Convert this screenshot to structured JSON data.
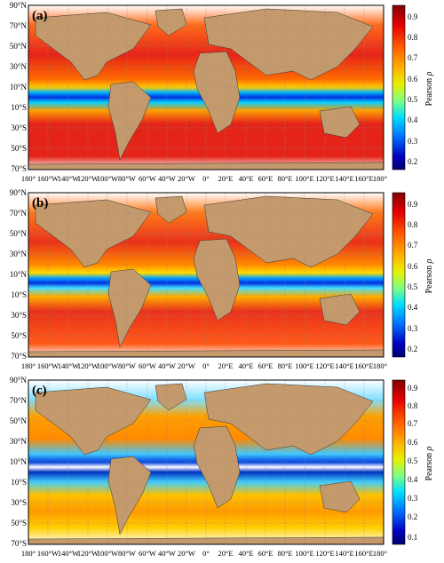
{
  "figure": {
    "panels": [
      {
        "label": "(a)"
      },
      {
        "label": "(b)"
      },
      {
        "label": "(c)"
      }
    ],
    "lat_ticks": [
      "90°N",
      "70°N",
      "50°N",
      "30°N",
      "10°N",
      "10°S",
      "30°S",
      "50°S",
      "70°S"
    ],
    "lon_ticks": [
      "180°",
      "160°W",
      "140°W",
      "120°W",
      "100°W",
      "80°W",
      "60°W",
      "40°W",
      "20°W",
      "0°",
      "20°E",
      "40°E",
      "60°E",
      "80°E",
      "100°E",
      "120°E",
      "140°E",
      "160°E",
      "180°"
    ],
    "colorbar": {
      "label": "Pearson ",
      "label_symbol": "ρ",
      "ticks_ab": [
        "0.9",
        "0.8",
        "0.7",
        "0.6",
        "0.5",
        "0.4",
        "0.3",
        "0.2"
      ],
      "ticks_c": [
        "0.9",
        "0.8",
        "0.7",
        "0.6",
        "0.5",
        "0.4",
        "0.3",
        "0.2",
        "0.1"
      ],
      "colormap": [
        "#800000",
        "#e60000",
        "#ff5a00",
        "#ffb000",
        "#e8f000",
        "#80ff80",
        "#00e0ff",
        "#0070ff",
        "#0000c0",
        "#000070"
      ]
    },
    "colors": {
      "land": "#c49a6c",
      "ocean_high": "#e3261b",
      "ocean_mid": "#ffb000",
      "equator_low": "#0050ff",
      "grid": "#888888"
    }
  }
}
